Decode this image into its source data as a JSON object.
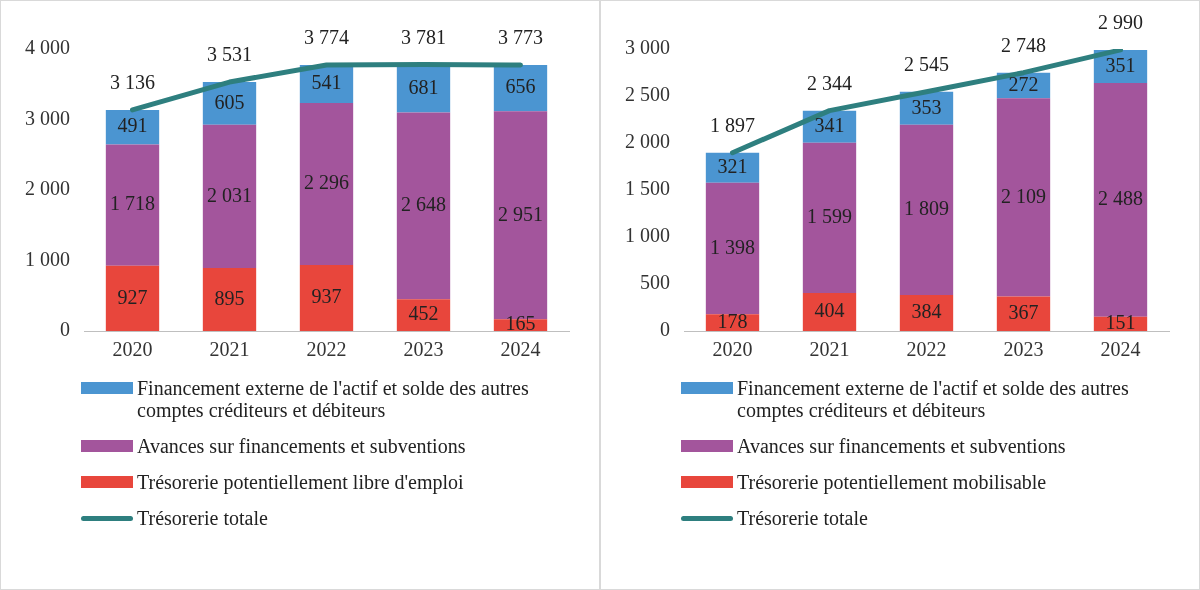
{
  "chart_data": [
    {
      "type": "bar",
      "stacked": true,
      "legend": "bottom",
      "grid": false,
      "categories": [
        "2020",
        "2021",
        "2022",
        "2023",
        "2024"
      ],
      "ylim": [
        0,
        4000
      ],
      "yticks": [
        {
          "value": 0,
          "label": "0"
        },
        {
          "value": 1000,
          "label": "1 000"
        },
        {
          "value": 2000,
          "label": "2 000"
        },
        {
          "value": 3000,
          "label": "3 000"
        },
        {
          "value": 4000,
          "label": "4 000"
        }
      ],
      "series": [
        {
          "name": "Trésorerie potentiellement libre d'emploi",
          "color": "#e8463c",
          "values": [
            927,
            895,
            937,
            452,
            165
          ],
          "value_labels": [
            "927",
            "895",
            "937",
            "452",
            "165"
          ]
        },
        {
          "name": "Avances sur financements et subventions",
          "color": "#a3559c",
          "values": [
            1718,
            2031,
            2296,
            2648,
            2951
          ],
          "value_labels": [
            "1 718",
            "2 031",
            "2 296",
            "2 648",
            "2 951"
          ]
        },
        {
          "name": "Financement externe de l'actif et solde des autres comptes créditeurs et débiteurs",
          "color": "#4b95d1",
          "values": [
            491,
            605,
            541,
            681,
            656
          ],
          "value_labels": [
            "491",
            "605",
            "541",
            "681",
            "656"
          ]
        },
        {
          "name": "Trésorerie totale",
          "type": "line",
          "marker": "none",
          "line_style": "solid",
          "color": "#2e7f7f",
          "values": [
            3136,
            3531,
            3774,
            3781,
            3773
          ],
          "value_labels": [
            "3 136",
            "3 531",
            "3 774",
            "3 781",
            "3 773"
          ]
        }
      ]
    },
    {
      "type": "bar",
      "stacked": true,
      "legend": "bottom",
      "grid": false,
      "categories": [
        "2020",
        "2021",
        "2022",
        "2023",
        "2024"
      ],
      "ylim": [
        0,
        3000
      ],
      "yticks": [
        {
          "value": 0,
          "label": "0"
        },
        {
          "value": 500,
          "label": "500"
        },
        {
          "value": 1000,
          "label": "1 000"
        },
        {
          "value": 1500,
          "label": "1 500"
        },
        {
          "value": 2000,
          "label": "2 000"
        },
        {
          "value": 2500,
          "label": "2 500"
        },
        {
          "value": 3000,
          "label": "3 000"
        }
      ],
      "series": [
        {
          "name": "Trésorerie potentiellement mobilisable",
          "color": "#e8463c",
          "values": [
            178,
            404,
            384,
            367,
            151
          ],
          "value_labels": [
            "178",
            "404",
            "384",
            "367",
            "151"
          ]
        },
        {
          "name": "Avances sur financements et subventions",
          "color": "#a3559c",
          "values": [
            1398,
            1599,
            1809,
            2109,
            2488
          ],
          "value_labels": [
            "1 398",
            "1 599",
            "1 809",
            "2 109",
            "2 488"
          ]
        },
        {
          "name": "Financement externe de l'actif et solde des autres comptes créditeurs et débiteurs",
          "color": "#4b95d1",
          "values": [
            321,
            341,
            353,
            272,
            351
          ],
          "value_labels": [
            "321",
            "341",
            "353",
            "272",
            "351"
          ]
        },
        {
          "name": "Trésorerie totale",
          "type": "line",
          "marker": "none",
          "line_style": "solid",
          "color": "#2e7f7f",
          "values": [
            1897,
            2344,
            2545,
            2748,
            2990
          ],
          "value_labels": [
            "1 897",
            "2 344",
            "2 545",
            "2 748",
            "2 990"
          ]
        }
      ]
    }
  ]
}
